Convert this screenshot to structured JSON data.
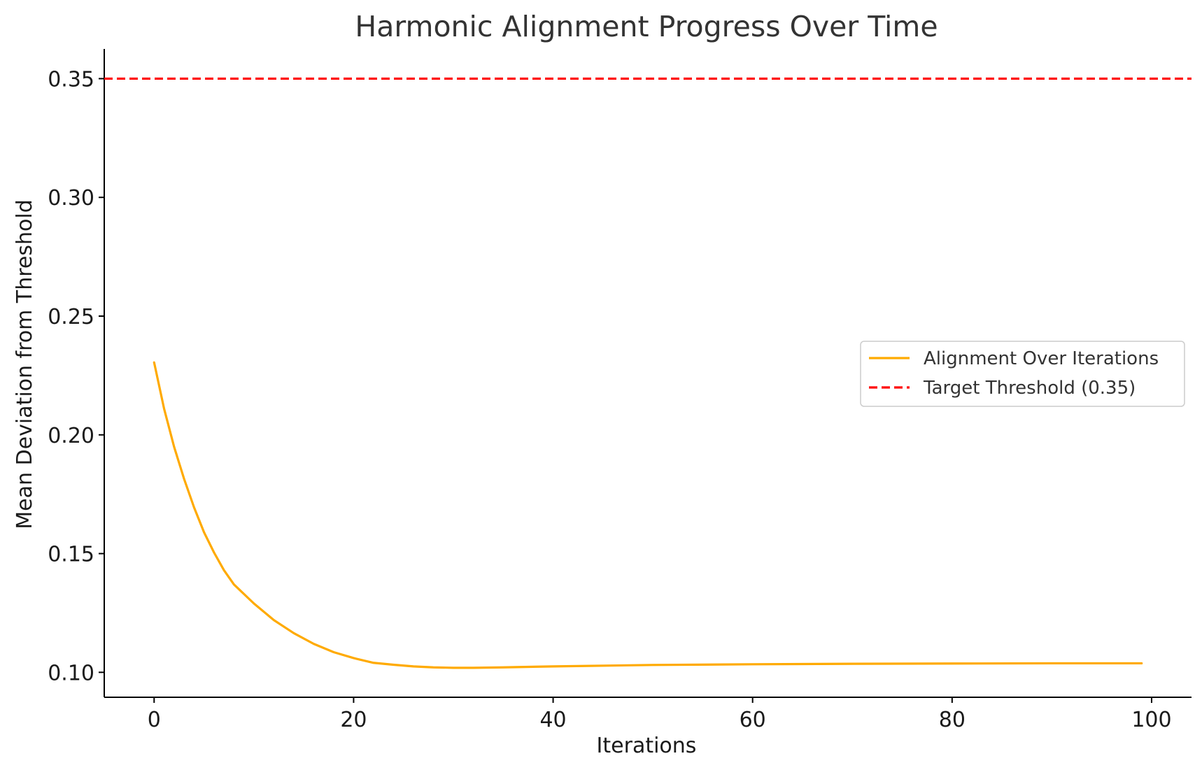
{
  "chart_data": {
    "type": "line",
    "title": "Harmonic Alignment Progress Over Time",
    "xlabel": "Iterations",
    "ylabel": "Mean Deviation from Threshold",
    "xlim": [
      -5,
      104
    ],
    "ylim": [
      0.0895,
      0.3625
    ],
    "xticks": [
      0,
      20,
      40,
      60,
      80,
      100
    ],
    "yticks": [
      0.1,
      0.15,
      0.2,
      0.25,
      0.3,
      0.35
    ],
    "ytick_labels": [
      "0.10",
      "0.15",
      "0.20",
      "0.25",
      "0.30",
      "0.35"
    ],
    "grid": false,
    "legend_position": "center-right",
    "series": [
      {
        "name": "Alignment Over Iterations",
        "color": "#FFAA00",
        "style": "solid",
        "x": [
          0,
          1,
          2,
          3,
          4,
          5,
          6,
          7,
          8,
          10,
          12,
          14,
          16,
          18,
          20,
          22,
          24,
          26,
          28,
          30,
          32,
          35,
          40,
          50,
          60,
          70,
          80,
          90,
          99
        ],
        "y": [
          0.2305,
          0.211,
          0.195,
          0.1815,
          0.1695,
          0.159,
          0.1505,
          0.143,
          0.137,
          0.129,
          0.122,
          0.1165,
          0.112,
          0.1085,
          0.106,
          0.104,
          0.1032,
          0.1025,
          0.1021,
          0.1019,
          0.1019,
          0.1021,
          0.1025,
          0.1031,
          0.1034,
          0.1036,
          0.1037,
          0.1038,
          0.1038
        ]
      },
      {
        "name": "Target Threshold (0.35)",
        "color": "#FF0000",
        "style": "dashed",
        "hline": 0.35
      }
    ]
  }
}
